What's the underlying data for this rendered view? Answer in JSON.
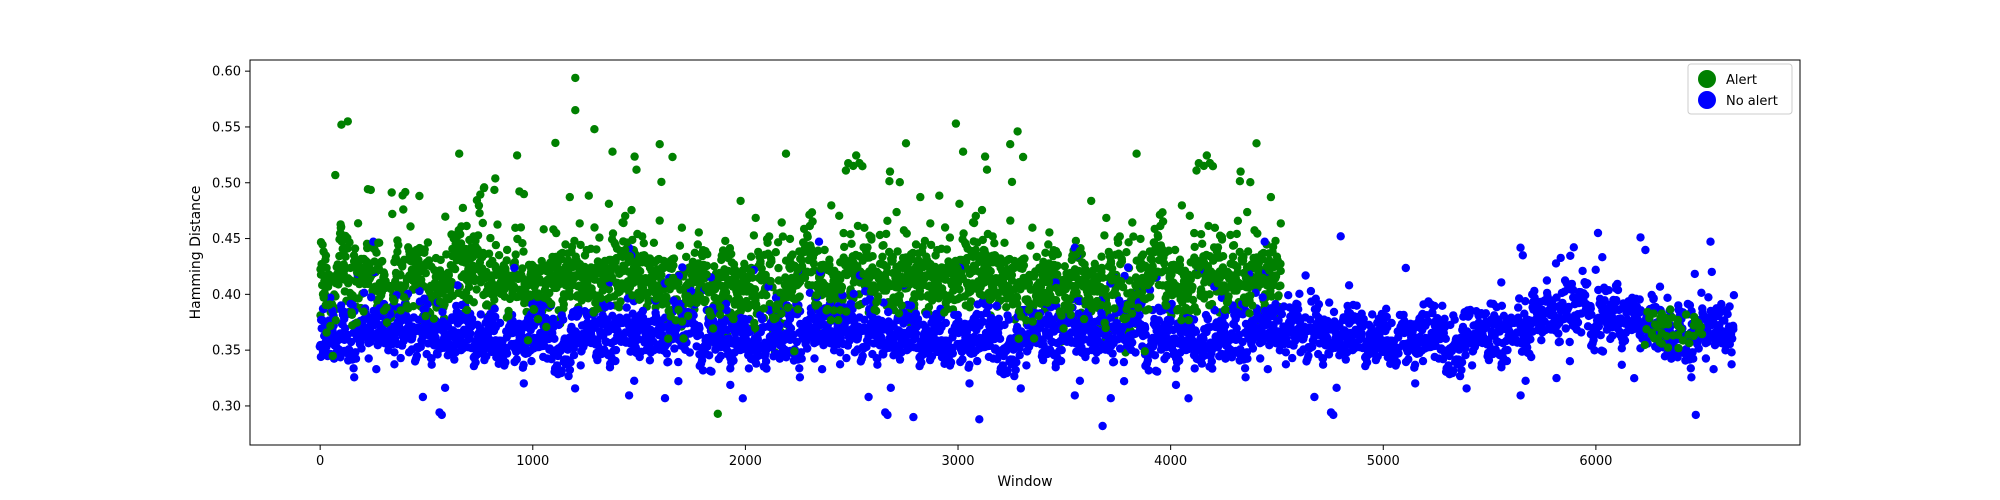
{
  "chart_data": {
    "type": "scatter",
    "title": "",
    "xlabel": "Window",
    "ylabel": "Hamming Distance",
    "xlim": [
      -330,
      6960
    ],
    "ylim": [
      0.265,
      0.61
    ],
    "x_ticks": [
      0,
      1000,
      2000,
      3000,
      4000,
      5000,
      6000
    ],
    "y_ticks": [
      0.3,
      0.35,
      0.4,
      0.45,
      0.5,
      0.55,
      0.6
    ],
    "x_tick_labels": [
      "0",
      "1000",
      "2000",
      "3000",
      "4000",
      "5000",
      "6000"
    ],
    "y_tick_labels": [
      "0.30",
      "0.35",
      "0.40",
      "0.45",
      "0.50",
      "0.55",
      "0.60"
    ],
    "grid": false,
    "legend_position": "top-right",
    "n_windows": 6650,
    "series": [
      {
        "name": "Alert",
        "color": "#008000",
        "x_range": [
          0,
          4520
        ],
        "extra_x_range": [
          6230,
          6500
        ],
        "y_typical_range": [
          0.32,
          0.5
        ],
        "y_center": 0.415,
        "y_min": 0.29,
        "y_max": 0.594,
        "notable_points": [
          [
            1200,
            0.594
          ],
          [
            1200,
            0.565
          ],
          [
            130,
            0.555
          ],
          [
            100,
            0.552
          ],
          [
            2990,
            0.553
          ],
          [
            1290,
            0.548
          ],
          [
            3280,
            0.546
          ],
          [
            1870,
            0.293
          ]
        ]
      },
      {
        "name": "No alert",
        "color": "#0000ff",
        "x_range": [
          0,
          6650
        ],
        "y_typical_range": [
          0.31,
          0.43
        ],
        "y_center": 0.365,
        "y_min": 0.282,
        "y_max": 0.455,
        "notable_points": [
          [
            6010,
            0.455
          ],
          [
            6210,
            0.451
          ],
          [
            4800,
            0.452
          ],
          [
            3680,
            0.282
          ],
          [
            3100,
            0.288
          ],
          [
            2790,
            0.29
          ],
          [
            6470,
            0.292
          ]
        ]
      }
    ]
  }
}
